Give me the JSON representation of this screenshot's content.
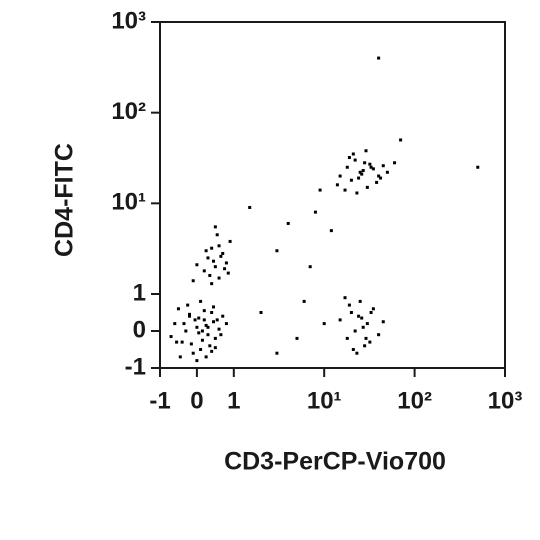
{
  "chart_data": {
    "type": "scatter",
    "x_label": "CD3-PerCP-Vio700",
    "y_label": "CD4-FITC",
    "color": "#000000",
    "xlim": [
      -1,
      1000
    ],
    "ylim": [
      -1,
      1000
    ],
    "scale": "biexponential",
    "xticks": [
      -1,
      0,
      1,
      {
        "value": 10,
        "label": "10¹"
      },
      {
        "value": 100,
        "label": "10²"
      },
      {
        "value": 1000,
        "label": "10³"
      }
    ],
    "yticks": [
      -1,
      0,
      1,
      {
        "value": 10,
        "label": "10¹"
      },
      {
        "value": 100,
        "label": "10²"
      },
      {
        "value": 1000,
        "label": "10³"
      }
    ],
    "x": [
      -0.6,
      -0.4,
      -0.2,
      0,
      0.1,
      0.2,
      0.3,
      0.4,
      0.5,
      -0.5,
      -0.3,
      -0.1,
      0.05,
      0.15,
      0.25,
      0.35,
      0.45,
      0.6,
      -0.7,
      0.7,
      -0.45,
      -0.25,
      0.0,
      0.2,
      0.4,
      0.55,
      -0.35,
      -0.15,
      0.1,
      0.3,
      0.5,
      0.65,
      -0.55,
      0.8,
      -0.2,
      0.05,
      0.25,
      0.45,
      0.15,
      -0.05,
      0.2,
      0.3,
      0.4,
      0.5,
      0.6,
      0.7,
      0.8,
      0.9,
      0.35,
      0.55,
      0.75,
      0.45,
      0.25,
      0.65,
      0.85,
      -0.1,
      0.0,
      0.5,
      0.6,
      0.4,
      15,
      18,
      20,
      22,
      25,
      28,
      30,
      35,
      40,
      45,
      17,
      21,
      24,
      27,
      32,
      38,
      50,
      19,
      23,
      26,
      29,
      33,
      42,
      14,
      60,
      15,
      18,
      20,
      22,
      25,
      28,
      30,
      35,
      40,
      17,
      21,
      24,
      27,
      32,
      19,
      23,
      26,
      45,
      29,
      33,
      2,
      3,
      5,
      8,
      4,
      6,
      12,
      10,
      1.5,
      70,
      500,
      40,
      3,
      7,
      9
    ],
    "values": [
      0.2,
      -0.3,
      0.4,
      0.1,
      -0.5,
      0.3,
      -0.1,
      0.5,
      -0.2,
      0.6,
      0.0,
      -0.6,
      0.35,
      -0.25,
      0.15,
      -0.4,
      0.25,
      0.05,
      -0.15,
      0.4,
      -0.7,
      0.7,
      -0.8,
      0.55,
      -0.55,
      0.3,
      0.2,
      -0.35,
      0.8,
      0.1,
      -0.45,
      -0.1,
      -0.3,
      0.2,
      0.45,
      -0.05,
      -0.7,
      0.65,
      0.0,
      0.3,
      1.8,
      2.5,
      3.2,
      2.0,
      1.5,
      2.8,
      2.2,
      3.8,
      1.6,
      4.5,
      1.9,
      2.3,
      3.0,
      2.6,
      1.7,
      1.4,
      2.1,
      5.5,
      3.4,
      1.3,
      20,
      25,
      18,
      30,
      22,
      28,
      15,
      24,
      20,
      26,
      14,
      35,
      19,
      23,
      27,
      17,
      22,
      32,
      13,
      21,
      38,
      25,
      19,
      16,
      28,
      0.3,
      -0.2,
      0.5,
      0.0,
      0.8,
      -0.4,
      0.2,
      0.6,
      -0.1,
      0.9,
      -0.5,
      0.4,
      0.1,
      -0.3,
      0.7,
      -0.6,
      0.35,
      0.25,
      -0.2,
      0.5,
      0.5,
      3,
      -0.2,
      8,
      6,
      0.8,
      5,
      0.2,
      9,
      50,
      25,
      400,
      -0.6,
      2,
      14
    ]
  }
}
